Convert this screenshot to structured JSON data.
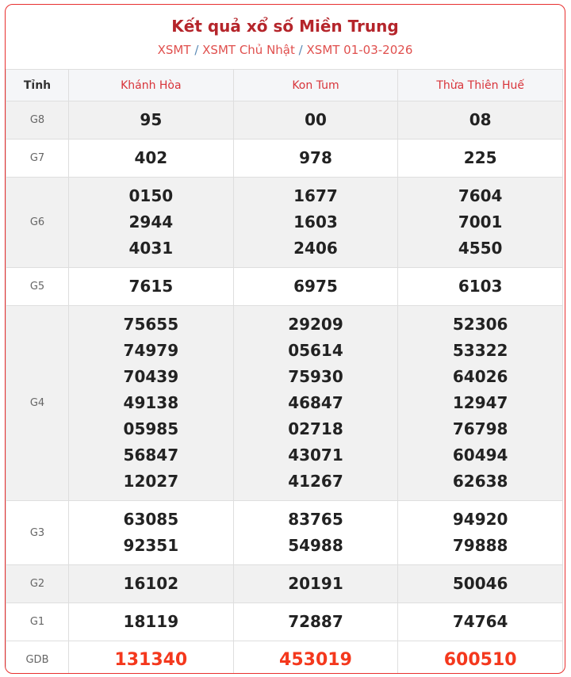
{
  "title": "Kết quả xổ số Miền Trung",
  "breadcrumb": [
    "XSMT",
    "XSMT Chủ Nhật",
    "XSMT 01-03-2026"
  ],
  "breadcrumb_separator": "/",
  "colors": {
    "title": "#b5252b",
    "special_prize": "#f4381d",
    "border": "#e8302f"
  },
  "table": {
    "header_label": "Tỉnh",
    "provinces": [
      "Khánh Hòa",
      "Kon Tum",
      "Thừa Thiên Huế"
    ],
    "rows": [
      {
        "prize": "G8",
        "values": [
          [
            "95"
          ],
          [
            "00"
          ],
          [
            "08"
          ]
        ]
      },
      {
        "prize": "G7",
        "values": [
          [
            "402"
          ],
          [
            "978"
          ],
          [
            "225"
          ]
        ]
      },
      {
        "prize": "G6",
        "values": [
          [
            "0150",
            "2944",
            "4031"
          ],
          [
            "1677",
            "1603",
            "2406"
          ],
          [
            "7604",
            "7001",
            "4550"
          ]
        ]
      },
      {
        "prize": "G5",
        "values": [
          [
            "7615"
          ],
          [
            "6975"
          ],
          [
            "6103"
          ]
        ]
      },
      {
        "prize": "G4",
        "values": [
          [
            "75655",
            "74979",
            "70439",
            "49138",
            "05985",
            "56847",
            "12027"
          ],
          [
            "29209",
            "05614",
            "75930",
            "46847",
            "02718",
            "43071",
            "41267"
          ],
          [
            "52306",
            "53322",
            "64026",
            "12947",
            "76798",
            "60494",
            "62638"
          ]
        ]
      },
      {
        "prize": "G3",
        "values": [
          [
            "63085",
            "92351"
          ],
          [
            "83765",
            "54988"
          ],
          [
            "94920",
            "79888"
          ]
        ]
      },
      {
        "prize": "G2",
        "values": [
          [
            "16102"
          ],
          [
            "20191"
          ],
          [
            "50046"
          ]
        ]
      },
      {
        "prize": "G1",
        "values": [
          [
            "18119"
          ],
          [
            "72887"
          ],
          [
            "74764"
          ]
        ]
      },
      {
        "prize": "GDB",
        "values": [
          [
            "131340"
          ],
          [
            "453019"
          ],
          [
            "600510"
          ]
        ]
      }
    ]
  }
}
